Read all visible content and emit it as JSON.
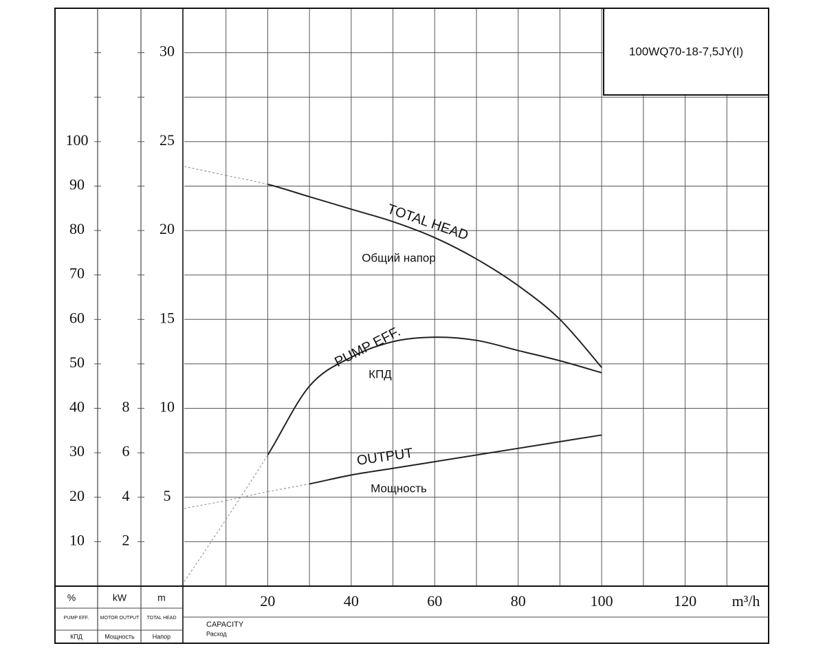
{
  "chart_data": {
    "type": "line",
    "title": "100WQ70-18-7,5JY(I)",
    "xlabel": {
      "unit": "m³/h",
      "name": "CAPACITY",
      "name_ru": "Расход"
    },
    "ylabel": {
      "unit": "m",
      "name": "TOTAL HEAD",
      "name_ru": "Напор"
    },
    "y2label": {
      "unit": "%",
      "name": "PUMP EFF.",
      "name_ru": "КПД"
    },
    "y3label": {
      "unit": "kW",
      "name": "MOTOR OUTPUT",
      "name_ru": "Мощность"
    },
    "x": [
      0,
      10,
      20,
      30,
      40,
      50,
      60,
      70,
      80,
      90,
      100
    ],
    "series": [
      {
        "name": "TOTAL HEAD",
        "name_ru": "Общий напор",
        "color": "#222222",
        "axis": "y",
        "dashed_below": 20,
        "values": [
          23.6,
          23.1,
          22.6,
          21.9,
          21.2,
          20.5,
          19.6,
          18.4,
          16.9,
          15.0,
          12.3
        ]
      },
      {
        "name": "PUMP EFF.",
        "name_ru": "КПД",
        "color": "#222222",
        "axis": "y2",
        "dashed_below": 20,
        "values": [
          1,
          15,
          29.5,
          45,
          51.5,
          55,
          56,
          55.3,
          53,
          50.7,
          48
        ]
      },
      {
        "name": "OUTPUT",
        "name_ru": "Мощность",
        "color": "#222222",
        "axis": "y3",
        "dashed_below": 30,
        "values": [
          3.5,
          3.85,
          4.25,
          4.6,
          5.0,
          5.3,
          5.6,
          5.9,
          6.2,
          6.5,
          6.8
        ]
      }
    ],
    "xlim": [
      0,
      140
    ],
    "xticks": [
      20,
      40,
      60,
      80,
      100,
      120
    ],
    "xgrid": [
      10,
      20,
      30,
      40,
      50,
      60,
      70,
      80,
      90,
      100,
      110,
      120,
      130
    ],
    "ylim": [
      0,
      32.5
    ],
    "yticks": [
      5,
      10,
      15,
      20,
      25,
      30
    ],
    "ygrid": [
      2.5,
      5,
      7.5,
      10,
      12.5,
      15,
      17.5,
      20,
      22.5,
      25,
      27.5,
      30
    ],
    "y2lim": [
      0,
      130
    ],
    "y2ticks": [
      10,
      20,
      30,
      40,
      50,
      60,
      70,
      80,
      90,
      100
    ],
    "y3lim": [
      0,
      26
    ],
    "y3ticks": [
      2,
      4,
      6,
      8
    ],
    "grid": true
  }
}
